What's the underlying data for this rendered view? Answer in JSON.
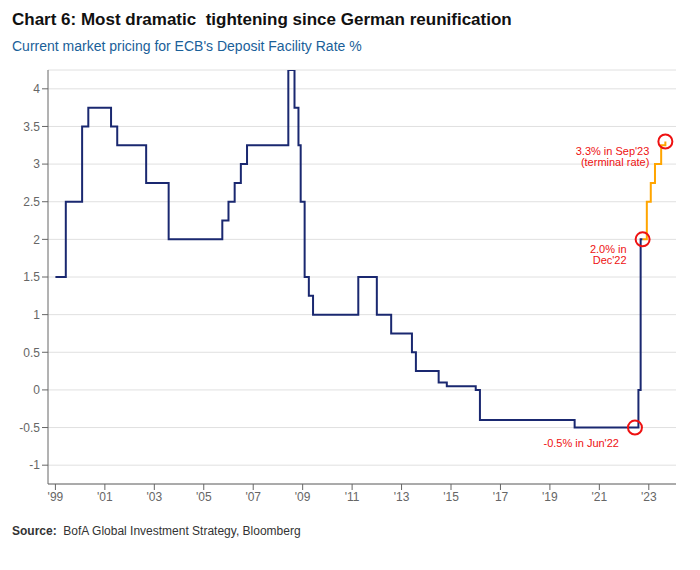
{
  "chart_data": {
    "type": "step",
    "title": "Chart 6: Most dramatic  tightening since German reunification",
    "subtitle": "Current market pricing for ECB's Deposit Facility Rate %",
    "subtitle_color": "#1a6099",
    "source": {
      "label": "Source:",
      "text": "  BofA Global Investment Strategy, Bloomberg"
    },
    "xlim": [
      1998.7,
      2024.1
    ],
    "ylim": [
      -1.25,
      4.25
    ],
    "yticks": [
      -1,
      -0.5,
      0,
      0.5,
      1,
      1.5,
      2,
      2.5,
      3,
      3.5,
      4
    ],
    "xticks": [
      {
        "value": 1999,
        "label": "'99"
      },
      {
        "value": 2001,
        "label": "'01"
      },
      {
        "value": 2003,
        "label": "'03"
      },
      {
        "value": 2005,
        "label": "'05"
      },
      {
        "value": 2007,
        "label": "'07"
      },
      {
        "value": 2009,
        "label": "'09"
      },
      {
        "value": 2011,
        "label": "'11"
      },
      {
        "value": 2013,
        "label": "'13"
      },
      {
        "value": 2015,
        "label": "'15"
      },
      {
        "value": 2017,
        "label": "'17"
      },
      {
        "value": 2019,
        "label": "'19"
      },
      {
        "value": 2021,
        "label": "'21"
      },
      {
        "value": 2023,
        "label": "'23"
      }
    ],
    "grid": "y",
    "series": [
      {
        "color": "#1a2870",
        "x": [
          1999.0,
          1999.08,
          1999.42,
          1999.75,
          2000.08,
          2000.33,
          2001.0,
          2001.25,
          2001.5,
          2001.83,
          2002.67,
          2003.0,
          2003.58,
          2004.67,
          2005.5,
          2005.75,
          2006.0,
          2006.25,
          2006.5,
          2006.75,
          2007.0,
          2007.5,
          2008.42,
          2008.67,
          2008.83,
          2008.92,
          2009.08,
          2009.25,
          2009.42,
          2009.58,
          2010.42,
          2010.83,
          2011.25,
          2011.58,
          2012.0,
          2012.58,
          2013.42,
          2013.58,
          2014.5,
          2014.83,
          2015.42,
          2016.0,
          2016.17,
          2019.75,
          2020.0,
          2021.0,
          2021.5,
          2022.0,
          2022.42,
          2022.44,
          2022.58,
          2022.67,
          2022.75
        ],
        "values": [
          1.5,
          1.5,
          2.5,
          2.5,
          3.5,
          3.75,
          3.75,
          3.5,
          3.25,
          3.25,
          2.75,
          2.75,
          2.0,
          2.0,
          2.0,
          2.25,
          2.5,
          2.75,
          3.0,
          3.25,
          3.25,
          3.25,
          4.25,
          3.75,
          3.25,
          2.5,
          1.5,
          1.25,
          1.0,
          1.0,
          1.0,
          1.0,
          1.5,
          1.5,
          1.0,
          0.75,
          0.5,
          0.25,
          0.1,
          0.05,
          0.05,
          0.0,
          -0.4,
          -0.4,
          -0.5,
          -0.5,
          -0.5,
          -0.5,
          -0.5,
          -0.5,
          0.0,
          2.0,
          2.0
        ]
      },
      {
        "color": "#FFA500",
        "x": [
          2022.75,
          2022.92,
          2023.08,
          2023.25,
          2023.5,
          2023.67
        ],
        "values": [
          2.0,
          2.5,
          2.75,
          3.0,
          3.25,
          3.3
        ]
      }
    ],
    "highlights": {
      "color": "#EE1111",
      "points": [
        {
          "x": 2022.44,
          "y": -0.5,
          "label": "-0.5% in Jun'22"
        },
        {
          "x": 2022.75,
          "y": 2.0,
          "label": "2.0% in\nDec'22"
        },
        {
          "x": 2023.67,
          "y": 3.3,
          "label": "3.3% in Sep'23\n(terminal rate)"
        }
      ]
    }
  }
}
